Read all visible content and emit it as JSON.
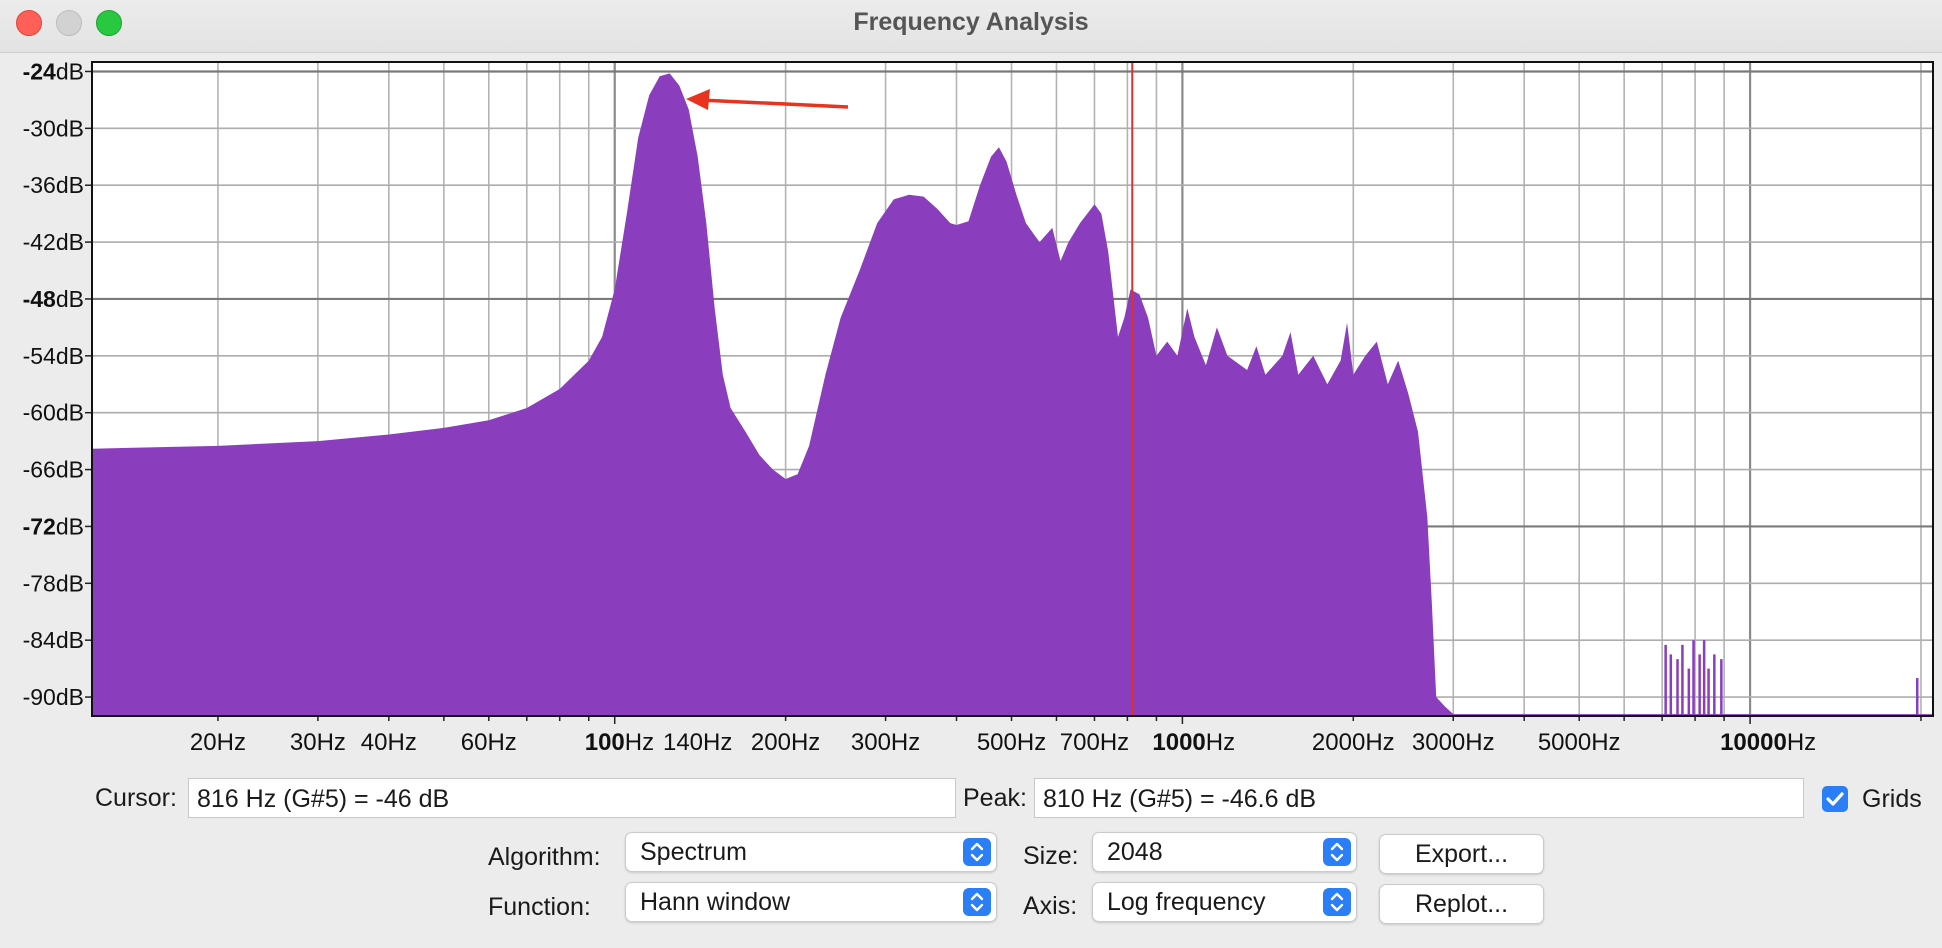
{
  "window": {
    "title": "Frequency Analysis"
  },
  "chart_data": {
    "type": "area",
    "xscale": "log",
    "xlim": [
      12,
      21000
    ],
    "ylim": [
      -92,
      -23
    ],
    "grid": true,
    "color": "#8a3dbd",
    "x_tick_labels": [
      {
        "num": "",
        "unit": "20Hz",
        "x": 20
      },
      {
        "num": "",
        "unit": "30Hz",
        "x": 30
      },
      {
        "num": "",
        "unit": "40Hz",
        "x": 40
      },
      {
        "num": "",
        "unit": "60Hz",
        "x": 60
      },
      {
        "num": "100",
        "unit": "Hz",
        "x": 100
      },
      {
        "num": "",
        "unit": "140Hz",
        "x": 140
      },
      {
        "num": "",
        "unit": "200Hz",
        "x": 200
      },
      {
        "num": "",
        "unit": "300Hz",
        "x": 300
      },
      {
        "num": "",
        "unit": "500Hz",
        "x": 500
      },
      {
        "num": "",
        "unit": "700Hz",
        "x": 700
      },
      {
        "num": "1000",
        "unit": "Hz",
        "x": 1000
      },
      {
        "num": "",
        "unit": "2000Hz",
        "x": 2000
      },
      {
        "num": "",
        "unit": "3000Hz",
        "x": 3000
      },
      {
        "num": "",
        "unit": "5000Hz",
        "x": 5000
      },
      {
        "num": "10000",
        "unit": "Hz",
        "x": 10000
      }
    ],
    "y_tick_labels": [
      {
        "num": "-24",
        "unit": "dB",
        "y": -24,
        "bold": true
      },
      {
        "num": "-30",
        "unit": "dB",
        "y": -30,
        "bold": false
      },
      {
        "num": "-36",
        "unit": "dB",
        "y": -36,
        "bold": false
      },
      {
        "num": "-42",
        "unit": "dB",
        "y": -42,
        "bold": false
      },
      {
        "num": "-48",
        "unit": "dB",
        "y": -48,
        "bold": true
      },
      {
        "num": "-54",
        "unit": "dB",
        "y": -54,
        "bold": false
      },
      {
        "num": "-60",
        "unit": "dB",
        "y": -60,
        "bold": false
      },
      {
        "num": "-66",
        "unit": "dB",
        "y": -66,
        "bold": false
      },
      {
        "num": "-72",
        "unit": "dB",
        "y": -72,
        "bold": true
      },
      {
        "num": "-78",
        "unit": "dB",
        "y": -78,
        "bold": false
      },
      {
        "num": "-84",
        "unit": "dB",
        "y": -84,
        "bold": false
      },
      {
        "num": "-90",
        "unit": "dB",
        "y": -90,
        "bold": false
      }
    ],
    "spectrum": [
      [
        12,
        -63.8
      ],
      [
        20,
        -63.5
      ],
      [
        30,
        -63.0
      ],
      [
        40,
        -62.3
      ],
      [
        50,
        -61.6
      ],
      [
        60,
        -60.8
      ],
      [
        70,
        -59.5
      ],
      [
        80,
        -57.5
      ],
      [
        90,
        -54.5
      ],
      [
        95,
        -52.0
      ],
      [
        100,
        -47.0
      ],
      [
        105,
        -39.0
      ],
      [
        110,
        -31.0
      ],
      [
        115,
        -26.5
      ],
      [
        120,
        -24.5
      ],
      [
        125,
        -24.2
      ],
      [
        130,
        -25.5
      ],
      [
        135,
        -28.0
      ],
      [
        140,
        -33.0
      ],
      [
        145,
        -40.0
      ],
      [
        150,
        -49.0
      ],
      [
        155,
        -56.0
      ],
      [
        160,
        -59.5
      ],
      [
        170,
        -62.0
      ],
      [
        180,
        -64.5
      ],
      [
        190,
        -66.0
      ],
      [
        200,
        -67.0
      ],
      [
        210,
        -66.5
      ],
      [
        220,
        -63.5
      ],
      [
        235,
        -56.0
      ],
      [
        250,
        -50.0
      ],
      [
        270,
        -45.0
      ],
      [
        290,
        -40.0
      ],
      [
        310,
        -37.5
      ],
      [
        330,
        -37.0
      ],
      [
        350,
        -37.2
      ],
      [
        370,
        -38.5
      ],
      [
        390,
        -40.0
      ],
      [
        400,
        -40.2
      ],
      [
        420,
        -39.8
      ],
      [
        440,
        -36.0
      ],
      [
        460,
        -33.0
      ],
      [
        475,
        -32.0
      ],
      [
        490,
        -33.5
      ],
      [
        510,
        -37.0
      ],
      [
        530,
        -40.0
      ],
      [
        560,
        -42.0
      ],
      [
        590,
        -40.5
      ],
      [
        610,
        -44.0
      ],
      [
        630,
        -42.0
      ],
      [
        660,
        -40.0
      ],
      [
        700,
        -38.0
      ],
      [
        720,
        -39.0
      ],
      [
        740,
        -43.0
      ],
      [
        770,
        -52.0
      ],
      [
        790,
        -50.0
      ],
      [
        810,
        -47.0
      ],
      [
        840,
        -47.5
      ],
      [
        870,
        -50.0
      ],
      [
        900,
        -54.0
      ],
      [
        940,
        -52.5
      ],
      [
        980,
        -54.0
      ],
      [
        1020,
        -49.0
      ],
      [
        1050,
        -52.0
      ],
      [
        1100,
        -55.0
      ],
      [
        1150,
        -51.0
      ],
      [
        1200,
        -54.0
      ],
      [
        1300,
        -55.5
      ],
      [
        1350,
        -53.0
      ],
      [
        1400,
        -56.0
      ],
      [
        1500,
        -54.0
      ],
      [
        1550,
        -51.5
      ],
      [
        1600,
        -56.0
      ],
      [
        1700,
        -54.0
      ],
      [
        1800,
        -57.0
      ],
      [
        1900,
        -54.5
      ],
      [
        1950,
        -50.5
      ],
      [
        2000,
        -56.0
      ],
      [
        2100,
        -54.0
      ],
      [
        2200,
        -52.5
      ],
      [
        2300,
        -57.0
      ],
      [
        2400,
        -54.5
      ],
      [
        2500,
        -58.0
      ],
      [
        2600,
        -62.0
      ],
      [
        2700,
        -71.0
      ],
      [
        2750,
        -80.0
      ],
      [
        2800,
        -90.0
      ],
      [
        2900,
        -91.0
      ],
      [
        3000,
        -91.8
      ],
      [
        3500,
        -91.8
      ],
      [
        21000,
        -91.8
      ]
    ],
    "hf_spikes": [
      [
        7100,
        -84.5
      ],
      [
        7250,
        -85.5
      ],
      [
        7450,
        -86.0
      ],
      [
        7600,
        -84.5
      ],
      [
        7800,
        -87.0
      ],
      [
        7950,
        -84.0
      ],
      [
        8150,
        -85.5
      ],
      [
        8300,
        -84.0
      ],
      [
        8450,
        -87.0
      ],
      [
        8650,
        -85.5
      ],
      [
        8900,
        -86.0
      ],
      [
        19700,
        -88.0
      ]
    ],
    "cursor_freq": 816
  },
  "controls": {
    "cursor_label": "Cursor:",
    "cursor_value": "816 Hz (G#5) = -46 dB",
    "peak_label": "Peak:",
    "peak_value": "810 Hz (G#5) = -46.6 dB",
    "grids_label": "Grids",
    "grids_checked": true,
    "algorithm_label": "Algorithm:",
    "algorithm_value": "Spectrum",
    "size_label": "Size:",
    "size_value": "2048",
    "function_label": "Function:",
    "function_value": "Hann window",
    "axis_label": "Axis:",
    "axis_value": "Log frequency",
    "export_label": "Export...",
    "replot_label": "Replot..."
  }
}
